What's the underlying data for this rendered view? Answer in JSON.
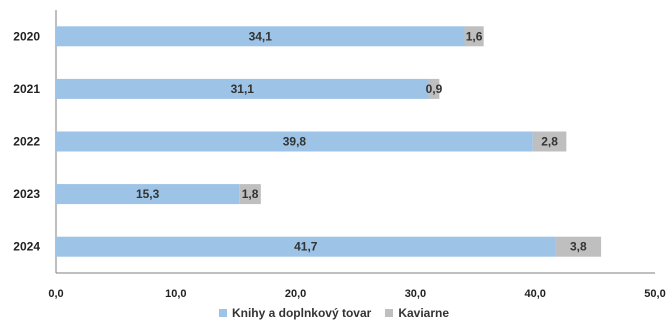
{
  "chart_data": {
    "type": "bar",
    "orientation": "horizontal",
    "stacked": true,
    "categories": [
      "2020",
      "2021",
      "2022",
      "2023",
      "2024"
    ],
    "series": [
      {
        "name": "Knihy a doplnkový tovar",
        "values": [
          34.1,
          31.1,
          39.8,
          15.3,
          41.7
        ],
        "labels": [
          "34,1",
          "31,1",
          "39,8",
          "15,3",
          "41,7"
        ],
        "color": "#9dc3e6"
      },
      {
        "name": "Kaviarne",
        "values": [
          1.6,
          0.9,
          2.8,
          1.8,
          3.8
        ],
        "labels": [
          "1,6",
          "0,9",
          "2,8",
          "1,8",
          "3,8"
        ],
        "color": "#bfbfbf"
      }
    ],
    "xlim": [
      0,
      50
    ],
    "xticks": [
      "0,0",
      "10,0",
      "20,0",
      "30,0",
      "40,0",
      "50,0"
    ],
    "grid": false,
    "legend_position": "bottom"
  }
}
